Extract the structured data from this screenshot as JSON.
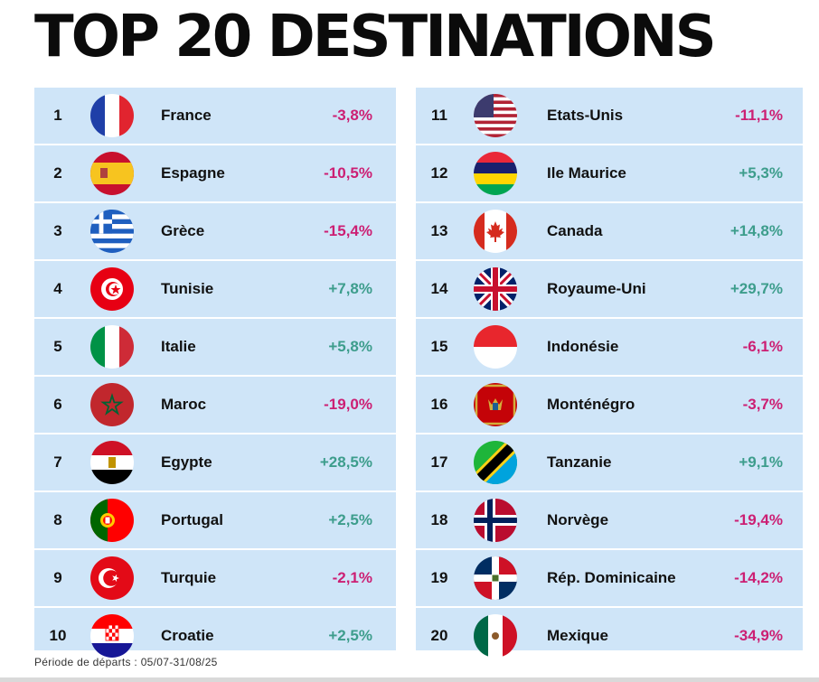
{
  "title": "TOP 20 DESTINATIONS",
  "footer": "Période de départs : 05/07-31/08/25",
  "colors": {
    "negative": "#cc1f73",
    "positive": "#3d9d8c",
    "panel": "#cfe5f8"
  },
  "left": [
    {
      "rank": "1",
      "name": "France",
      "change": "-3,8%",
      "trend": "neg",
      "flag": "france-flag-icon"
    },
    {
      "rank": "2",
      "name": "Espagne",
      "change": "-10,5%",
      "trend": "neg",
      "flag": "spain-flag-icon"
    },
    {
      "rank": "3",
      "name": "Grèce",
      "change": "-15,4%",
      "trend": "neg",
      "flag": "greece-flag-icon"
    },
    {
      "rank": "4",
      "name": "Tunisie",
      "change": "+7,8%",
      "trend": "pos",
      "flag": "tunisia-flag-icon"
    },
    {
      "rank": "5",
      "name": "Italie",
      "change": "+5,8%",
      "trend": "pos",
      "flag": "italy-flag-icon"
    },
    {
      "rank": "6",
      "name": "Maroc",
      "change": "-19,0%",
      "trend": "neg",
      "flag": "morocco-flag-icon"
    },
    {
      "rank": "7",
      "name": "Egypte",
      "change": "+28,5%",
      "trend": "pos",
      "flag": "egypt-flag-icon"
    },
    {
      "rank": "8",
      "name": "Portugal",
      "change": "+2,5%",
      "trend": "pos",
      "flag": "portugal-flag-icon"
    },
    {
      "rank": "9",
      "name": "Turquie",
      "change": "-2,1%",
      "trend": "neg",
      "flag": "turkey-flag-icon"
    },
    {
      "rank": "10",
      "name": "Croatie",
      "change": "+2,5%",
      "trend": "pos",
      "flag": "croatia-flag-icon"
    }
  ],
  "right": [
    {
      "rank": "11",
      "name": "Etats-Unis",
      "change": "-11,1%",
      "trend": "neg",
      "flag": "usa-flag-icon"
    },
    {
      "rank": "12",
      "name": "Ile Maurice",
      "change": "+5,3%",
      "trend": "pos",
      "flag": "mauritius-flag-icon"
    },
    {
      "rank": "13",
      "name": "Canada",
      "change": "+14,8%",
      "trend": "pos",
      "flag": "canada-flag-icon"
    },
    {
      "rank": "14",
      "name": "Royaume-Uni",
      "change": "+29,7%",
      "trend": "pos",
      "flag": "uk-flag-icon"
    },
    {
      "rank": "15",
      "name": "Indonésie",
      "change": "-6,1%",
      "trend": "neg",
      "flag": "indonesia-flag-icon"
    },
    {
      "rank": "16",
      "name": "Monténégro",
      "change": "-3,7%",
      "trend": "neg",
      "flag": "montenegro-flag-icon"
    },
    {
      "rank": "17",
      "name": "Tanzanie",
      "change": "+9,1%",
      "trend": "pos",
      "flag": "tanzania-flag-icon"
    },
    {
      "rank": "18",
      "name": "Norvège",
      "change": "-19,4%",
      "trend": "neg",
      "flag": "norway-flag-icon"
    },
    {
      "rank": "19",
      "name": "Rép. Dominicaine",
      "change": "-14,2%",
      "trend": "neg",
      "flag": "dominican-republic-flag-icon"
    },
    {
      "rank": "20",
      "name": "Mexique",
      "change": "-34,9%",
      "trend": "neg",
      "flag": "mexico-flag-icon"
    }
  ]
}
